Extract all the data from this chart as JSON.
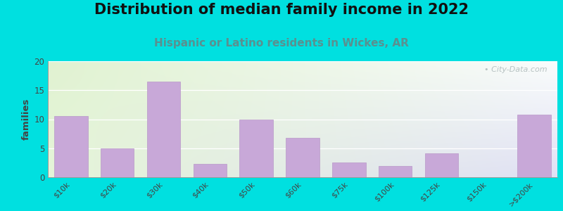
{
  "title": "Distribution of median family income in 2022",
  "subtitle": "Hispanic or Latino residents in Wickes, AR",
  "categories": [
    "$10k",
    "$20k",
    "$30k",
    "$40k",
    "$50k",
    "$60k",
    "$75k",
    "$100k",
    "$125k",
    "$150k",
    ">$200k"
  ],
  "values": [
    10.5,
    5,
    16.5,
    2.3,
    10,
    6.8,
    2.5,
    2.0,
    4.1,
    0,
    10.8
  ],
  "bar_color": "#c8a8d8",
  "bar_edge_color": "#b898c8",
  "ylim": [
    0,
    20
  ],
  "yticks": [
    0,
    5,
    10,
    15,
    20
  ],
  "ylabel": "families",
  "bg_outer": "#00e0e0",
  "title_fontsize": 15,
  "subtitle_fontsize": 11,
  "subtitle_color": "#5a9090",
  "watermark_text": "• City-Data.com",
  "watermark_color": "#b0bcbc"
}
